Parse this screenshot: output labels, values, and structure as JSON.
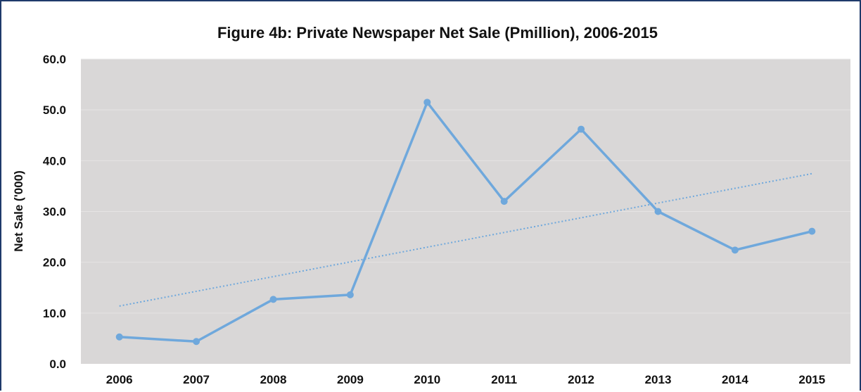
{
  "chart_data": {
    "type": "line",
    "title": "Figure 4b: Private Newspaper Net Sale (Pmillion), 2006-2015",
    "xlabel": "",
    "ylabel": "Net Sale ('000)",
    "categories": [
      "2006",
      "2007",
      "2008",
      "2009",
      "2010",
      "2011",
      "2012",
      "2013",
      "2014",
      "2015"
    ],
    "series": [
      {
        "values": [
          5.3,
          4.4,
          12.7,
          13.6,
          51.5,
          32.0,
          46.2,
          30.0,
          22.4,
          26.1
        ],
        "color": "#6fa8dc"
      }
    ],
    "trendline": {
      "type": "linear",
      "style": "dotted",
      "color": "#6fa8dc"
    },
    "ylim": [
      0,
      60
    ],
    "yticks": [
      "0.0",
      "10.0",
      "20.0",
      "30.0",
      "40.0",
      "50.0",
      "60.0"
    ],
    "grid": true,
    "legend": "none",
    "plot_background": "#d9d7d7",
    "frame_color": "#1f3a6b"
  }
}
